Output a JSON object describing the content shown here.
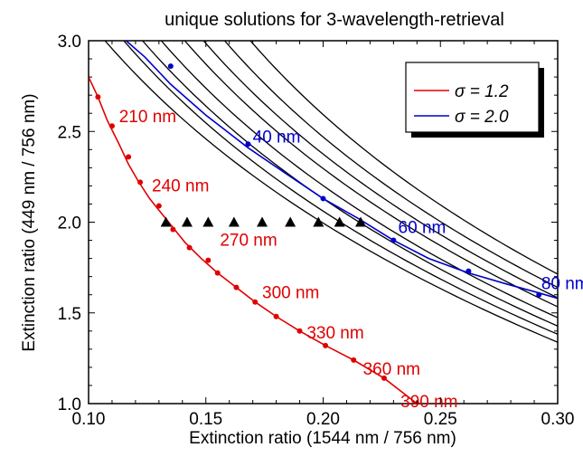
{
  "chart_data": {
    "type": "line",
    "title": "unique solutions for 3-wavelength-retrieval",
    "xlabel": "Extinction ratio (1544 nm / 756 nm)",
    "ylabel": "Extinction ratio (449 nm / 756 nm)",
    "xlim": [
      0.1,
      0.3
    ],
    "ylim": [
      1.0,
      3.0
    ],
    "x_ticks": [
      "0.10",
      "0.15",
      "0.20",
      "0.25",
      "0.30"
    ],
    "y_ticks": [
      "1.0",
      "1.5",
      "2.0",
      "2.5",
      "3.0"
    ],
    "x_tick_values": [
      0.1,
      0.15,
      0.2,
      0.25,
      0.3
    ],
    "y_tick_values": [
      1.0,
      1.5,
      2.0,
      2.5,
      3.0
    ],
    "grid": false,
    "legend": {
      "placement": "top-right",
      "entries": [
        {
          "label": "σ = 1.2",
          "color": "#e00000"
        },
        {
          "label": "σ = 2.0",
          "color": "#0000cc"
        }
      ]
    },
    "series": [
      {
        "name": "σ = 1.2",
        "color": "#e00000",
        "curve": [
          [
            0.1,
            2.8
          ],
          [
            0.104,
            2.69
          ],
          [
            0.108,
            2.56
          ],
          [
            0.113,
            2.43
          ],
          [
            0.117,
            2.32
          ],
          [
            0.121,
            2.23
          ],
          [
            0.126,
            2.13
          ],
          [
            0.131,
            2.05
          ],
          [
            0.136,
            1.97
          ],
          [
            0.141,
            1.89
          ],
          [
            0.148,
            1.8
          ],
          [
            0.155,
            1.72
          ],
          [
            0.163,
            1.64
          ],
          [
            0.171,
            1.56
          ],
          [
            0.18,
            1.48
          ],
          [
            0.19,
            1.4
          ],
          [
            0.201,
            1.32
          ],
          [
            0.213,
            1.24
          ],
          [
            0.226,
            1.14
          ],
          [
            0.24,
            1.0
          ]
        ],
        "markers": [
          [
            0.104,
            2.69
          ],
          [
            0.11,
            2.53
          ],
          [
            0.117,
            2.36
          ],
          [
            0.122,
            2.22
          ],
          [
            0.13,
            2.09
          ],
          [
            0.136,
            1.96
          ],
          [
            0.143,
            1.86
          ],
          [
            0.151,
            1.79
          ],
          [
            0.155,
            1.72
          ],
          [
            0.163,
            1.64
          ],
          [
            0.171,
            1.56
          ],
          [
            0.18,
            1.48
          ],
          [
            0.19,
            1.4
          ],
          [
            0.201,
            1.32
          ],
          [
            0.213,
            1.24
          ],
          [
            0.226,
            1.14
          ],
          [
            0.24,
            1.0
          ]
        ],
        "labels": [
          {
            "text": "210 nm",
            "x": 0.113,
            "y": 2.55
          },
          {
            "text": "240 nm",
            "x": 0.127,
            "y": 2.17
          },
          {
            "text": "270 nm",
            "x": 0.156,
            "y": 1.87
          },
          {
            "text": "300 nm",
            "x": 0.174,
            "y": 1.58
          },
          {
            "text": "330 nm",
            "x": 0.193,
            "y": 1.36
          },
          {
            "text": "360 nm",
            "x": 0.217,
            "y": 1.16
          },
          {
            "text": "390 nm",
            "x": 0.233,
            "y": 0.98
          }
        ]
      },
      {
        "name": "σ = 2.0",
        "color": "#0000cc",
        "curve": [
          [
            0.116,
            3.0
          ],
          [
            0.124,
            2.91
          ],
          [
            0.135,
            2.76
          ],
          [
            0.15,
            2.59
          ],
          [
            0.168,
            2.41
          ],
          [
            0.185,
            2.26
          ],
          [
            0.2,
            2.13
          ],
          [
            0.215,
            2.02
          ],
          [
            0.23,
            1.9
          ],
          [
            0.245,
            1.8
          ],
          [
            0.262,
            1.72
          ],
          [
            0.278,
            1.66
          ],
          [
            0.292,
            1.61
          ],
          [
            0.3,
            1.58
          ]
        ],
        "markers": [
          [
            0.135,
            2.86
          ],
          [
            0.168,
            2.43
          ],
          [
            0.2,
            2.13
          ],
          [
            0.23,
            1.9
          ],
          [
            0.262,
            1.73
          ],
          [
            0.292,
            1.6
          ]
        ],
        "labels": [
          {
            "text": "40 nm",
            "x": 0.17,
            "y": 2.44
          },
          {
            "text": "60 nm",
            "x": 0.232,
            "y": 1.94
          },
          {
            "text": "80 nm",
            "x": 0.293,
            "y": 1.63
          }
        ]
      }
    ],
    "contour_curves": [
      {
        "start": [
          0.107,
          3.0
        ],
        "a": 2.0,
        "b": 0.11
      },
      {
        "start": [
          0.115,
          3.0
        ],
        "a": 2.0,
        "b": 0.11
      },
      {
        "start": [
          0.123,
          3.0
        ],
        "a": 2.0,
        "b": 0.11
      },
      {
        "start": [
          0.131,
          3.0
        ],
        "a": 2.0,
        "b": 0.11
      },
      {
        "start": [
          0.141,
          3.0
        ],
        "a": 2.0,
        "b": 0.11
      },
      {
        "start": [
          0.149,
          3.0
        ],
        "a": 2.0,
        "b": 0.11
      },
      {
        "start": [
          0.158,
          3.0
        ],
        "a": 2.0,
        "b": 0.11
      },
      {
        "start": [
          0.169,
          3.0
        ],
        "a": 2.0,
        "b": 0.11
      }
    ],
    "triangle_points": [
      [
        0.133,
        2.0
      ],
      [
        0.142,
        2.0
      ],
      [
        0.151,
        2.0
      ],
      [
        0.162,
        2.0
      ],
      [
        0.174,
        2.0
      ],
      [
        0.186,
        2.0
      ],
      [
        0.198,
        2.0
      ],
      [
        0.207,
        2.0
      ],
      [
        0.216,
        2.0
      ]
    ]
  }
}
